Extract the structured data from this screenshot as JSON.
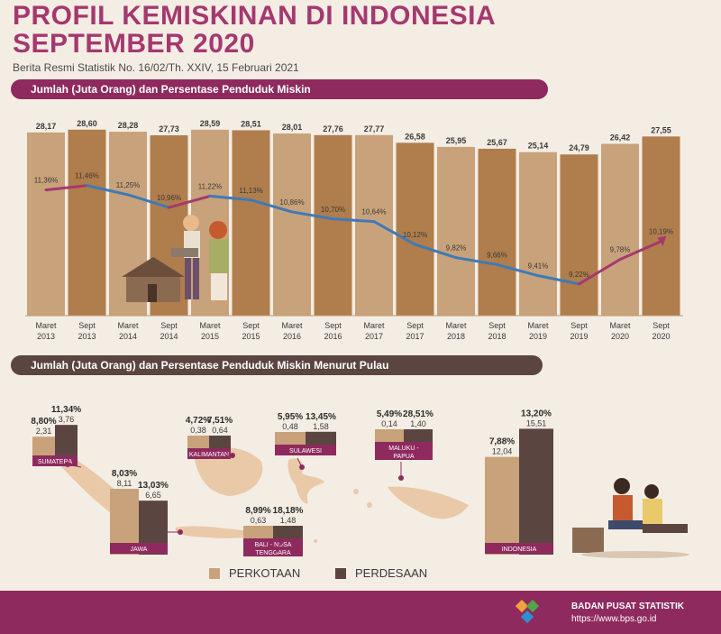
{
  "header": {
    "title": "PROFIL KEMISKINAN DI INDONESIA SEPTEMBER 2020",
    "subtitle": "Berita Resmi Statistik No. 16/02/Th. XXIV, 15 Februari 2021"
  },
  "section1": {
    "banner": "Jumlah (Juta Orang) dan Persentase Penduduk Miskin"
  },
  "section2": {
    "banner": "Jumlah (Juta Orang) dan Persentase Penduduk Miskin Menurut Pulau"
  },
  "legend": {
    "urban": "PERKOTAAN",
    "rural": "PERDESAAN"
  },
  "footer": {
    "org": "BADAN PUSAT STATISTIK",
    "url": "https://www.bps.go.id"
  },
  "colors": {
    "maret_bar": "#c8a27a",
    "sept_bar": "#b07d4c",
    "urban": "#c8a27a",
    "rural": "#5a4540",
    "line_decrease": "#3d7ab8",
    "line_increase": "#a5386f",
    "accent": "#8e2a5e",
    "background": "#f4ede4"
  },
  "chart_data": [
    {
      "type": "bar",
      "categories": [
        "Maret 2013",
        "Sept 2013",
        "Maret 2014",
        "Sept 2014",
        "Maret 2015",
        "Sept 2015",
        "Maret 2016",
        "Sept 2016",
        "Maret 2017",
        "Sept 2017",
        "Maret 2018",
        "Sept 2018",
        "Maret 2019",
        "Sept 2019",
        "Maret 2020",
        "Sept 2020"
      ],
      "category_lines": [
        [
          "Maret",
          "2013"
        ],
        [
          "Sept",
          "2013"
        ],
        [
          "Maret",
          "2014"
        ],
        [
          "Sept",
          "2014"
        ],
        [
          "Maret",
          "2015"
        ],
        [
          "Sept",
          "2015"
        ],
        [
          "Maret",
          "2016"
        ],
        [
          "Sept",
          "2016"
        ],
        [
          "Maret",
          "2017"
        ],
        [
          "Sept",
          "2017"
        ],
        [
          "Maret",
          "2018"
        ],
        [
          "Sept",
          "2018"
        ],
        [
          "Maret",
          "2019"
        ],
        [
          "Sept",
          "2019"
        ],
        [
          "Maret",
          "2020"
        ],
        [
          "Sept",
          "2020"
        ]
      ],
      "bar_values": [
        28.17,
        28.6,
        28.28,
        27.73,
        28.59,
        28.51,
        28.01,
        27.76,
        27.77,
        26.58,
        25.95,
        25.67,
        25.14,
        24.79,
        26.42,
        27.55
      ],
      "bar_labels": [
        "28,17",
        "28,60",
        "28,28",
        "27,73",
        "28,59",
        "28,51",
        "28,01",
        "27,76",
        "27,77",
        "26,58",
        "25,95",
        "25,67",
        "25,14",
        "24,79",
        "26,42",
        "27,55"
      ],
      "line_values": [
        11.36,
        11.46,
        11.25,
        10.96,
        11.22,
        11.13,
        10.86,
        10.7,
        10.64,
        10.12,
        9.82,
        9.66,
        9.41,
        9.22,
        9.78,
        10.19
      ],
      "line_labels": [
        "11,36%",
        "11,46%",
        "11,25%",
        "10,96%",
        "11,22%",
        "11,13%",
        "10,86%",
        "10,70%",
        "10,64%",
        "10,12%",
        "9,82%",
        "9,66%",
        "9,41%",
        "9,22%",
        "9,78%",
        "10,19%"
      ],
      "bar_ylim": [
        0,
        30
      ],
      "line_ylim": [
        8.5,
        12.5
      ],
      "bar_colors_by_period": {
        "Maret": "#c8a27a",
        "Sept": "#b07d4c"
      }
    },
    {
      "type": "bar",
      "groups": [
        {
          "name": "SUMATERA",
          "urban_pct": "8,80%",
          "rural_pct": "11,34%",
          "urban_count": 2.31,
          "rural_count": 3.76,
          "urban_count_label": "2,31",
          "rural_count_label": "3,76"
        },
        {
          "name": "JAWA",
          "urban_pct": "8,03%",
          "rural_pct": "13,03%",
          "urban_count": 8.11,
          "rural_count": 6.65,
          "urban_count_label": "8,11",
          "rural_count_label": "6,65"
        },
        {
          "name": "KALIMANTAN",
          "urban_pct": "4,72%",
          "rural_pct": "7,51%",
          "urban_count": 0.38,
          "rural_count": 0.64,
          "urban_count_label": "0,38",
          "rural_count_label": "0,64"
        },
        {
          "name": "SULAWESI",
          "urban_pct": "5,95%",
          "rural_pct": "13,45%",
          "urban_count": 0.48,
          "rural_count": 1.58,
          "urban_count_label": "0,48",
          "rural_count_label": "1,58"
        },
        {
          "name": "MALUKU - PAPUA",
          "urban_pct": "5,49%",
          "rural_pct": "28,51%",
          "urban_count": 0.14,
          "rural_count": 1.4,
          "urban_count_label": "0,14",
          "rural_count_label": "1,40"
        },
        {
          "name": "BALI - NUSA TENGGARA",
          "urban_pct": "8,99%",
          "rural_pct": "18,18%",
          "urban_count": 0.63,
          "rural_count": 1.48,
          "urban_count_label": "0,63",
          "rural_count_label": "1,48"
        },
        {
          "name": "INDONESIA",
          "urban_pct": "7,88%",
          "rural_pct": "13,20%",
          "urban_count": 12.04,
          "rural_count": 15.51,
          "urban_count_label": "12,04",
          "rural_count_label": "15,51"
        }
      ]
    }
  ]
}
